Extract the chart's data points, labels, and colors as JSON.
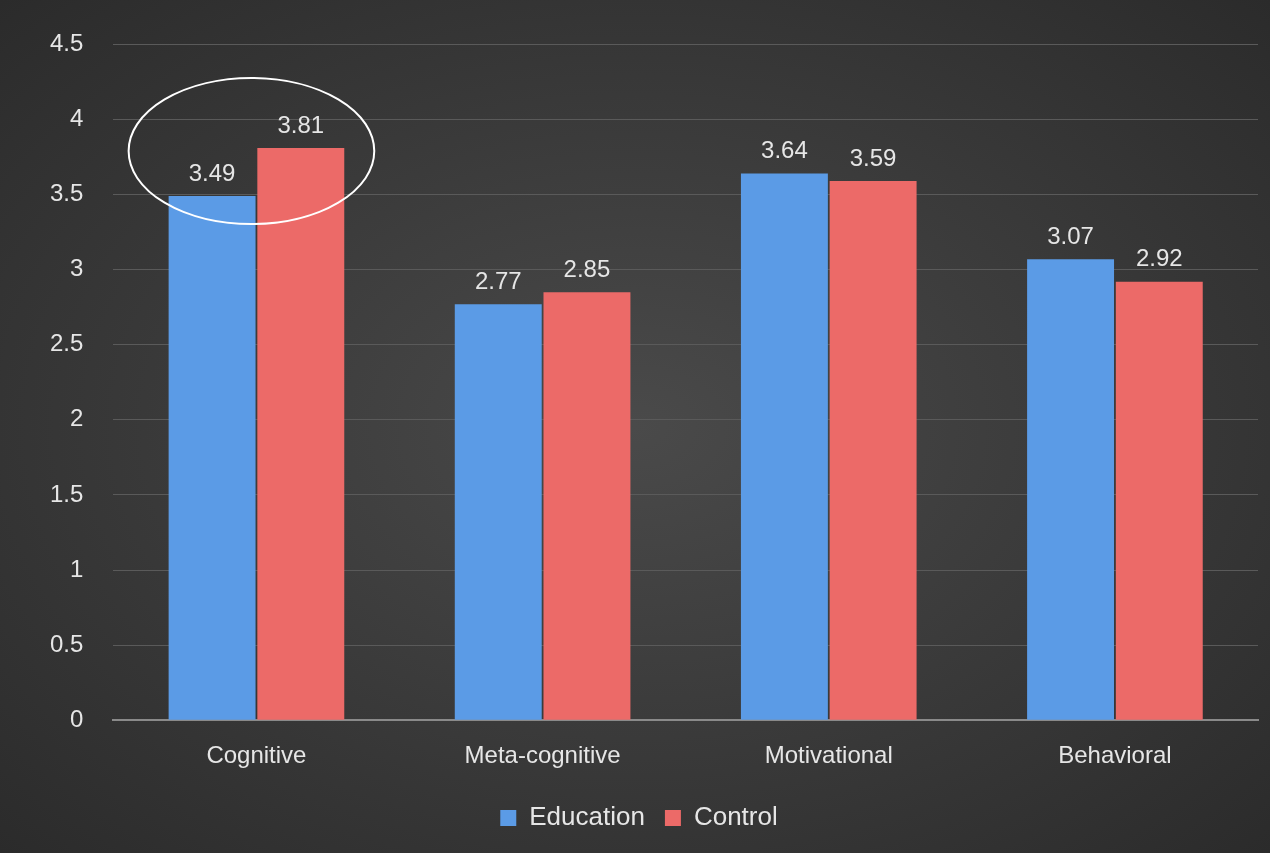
{
  "chart_data": {
    "type": "bar",
    "categories": [
      "Cognitive",
      "Meta-cognitive",
      "Motivational",
      "Behavioral"
    ],
    "series": [
      {
        "name": "Education",
        "color": "#5b9be6",
        "values": [
          3.49,
          2.77,
          3.64,
          3.07
        ]
      },
      {
        "name": "Control",
        "color": "#ec6a68",
        "values": [
          3.81,
          2.85,
          3.59,
          2.92
        ]
      }
    ],
    "ylim": [
      0,
      4.5
    ],
    "yticks": [
      0,
      0.5,
      1,
      1.5,
      2,
      2.5,
      3,
      3.5,
      4,
      4.5
    ],
    "grid": "y",
    "legend": "bottom",
    "data_labels": true
  }
}
